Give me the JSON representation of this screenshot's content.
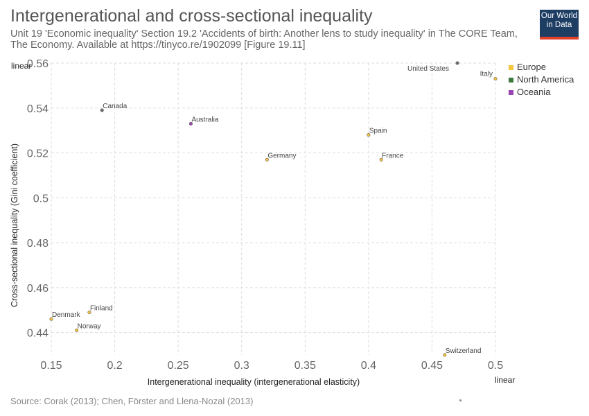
{
  "header": {
    "title": "Intergenerational and cross-sectional inequality",
    "subtitle": "Unit 19 'Economic inequality' Section 19.2 'Accidents of birth: Another lens to study inequality' in The CORE Team, The Economy. Available at https://tinyco.re/1902099 [Figure 19.11]"
  },
  "logo": {
    "line1": "Our World",
    "line2": "in Data"
  },
  "footer": {
    "source": "Source: Corak (2013); Chen, Förster and Llena-Nozal (2013)"
  },
  "colors": {
    "Europe": "#f7c640",
    "North America": "#3e7a3e",
    "Oceania": "#9b44b1",
    "default_point": "#6f6f6f"
  },
  "chart_data": {
    "type": "scatter",
    "xlabel": "Intergenerational inequality (intergenerational elasticity)",
    "ylabel": "Cross-sectional inequality (Gini coefficient)",
    "xlim": [
      0.15,
      0.5
    ],
    "ylim": [
      0.43,
      0.56
    ],
    "x_ticks": [
      0.15,
      0.2,
      0.25,
      0.3,
      0.35,
      0.4,
      0.45,
      0.5
    ],
    "x_tick_labels": [
      "0.15",
      "0.2",
      "0.25",
      "0.3",
      "0.35",
      "0.4",
      "0.45",
      "0.5"
    ],
    "y_ticks": [
      0.44,
      0.46,
      0.48,
      0.5,
      0.52,
      0.54,
      0.56
    ],
    "y_tick_labels": [
      "0.44",
      "0.46",
      "0.48",
      "0.5",
      "0.52",
      "0.54",
      "0.56"
    ],
    "x_scale_label": "linear",
    "y_scale_label": "linear",
    "grid": true,
    "legend_position": "top-right",
    "legend": [
      "Europe",
      "North America",
      "Oceania"
    ],
    "points": [
      {
        "label": "United States",
        "x": 0.47,
        "y": 0.56,
        "group": ""
      },
      {
        "label": "Italy",
        "x": 0.5,
        "y": 0.553,
        "group": "Europe"
      },
      {
        "label": "Canada",
        "x": 0.19,
        "y": 0.539,
        "group": ""
      },
      {
        "label": "Australia",
        "x": 0.26,
        "y": 0.533,
        "group": "Oceania"
      },
      {
        "label": "Spain",
        "x": 0.4,
        "y": 0.528,
        "group": "Europe"
      },
      {
        "label": "Germany",
        "x": 0.32,
        "y": 0.517,
        "group": "Europe"
      },
      {
        "label": "France",
        "x": 0.41,
        "y": 0.517,
        "group": "Europe"
      },
      {
        "label": "Finland",
        "x": 0.18,
        "y": 0.449,
        "group": "Europe"
      },
      {
        "label": "Denmark",
        "x": 0.15,
        "y": 0.446,
        "group": "Europe"
      },
      {
        "label": "Norway",
        "x": 0.17,
        "y": 0.441,
        "group": "Europe"
      },
      {
        "label": "Switzerland",
        "x": 0.46,
        "y": 0.43,
        "group": "Europe"
      }
    ]
  }
}
